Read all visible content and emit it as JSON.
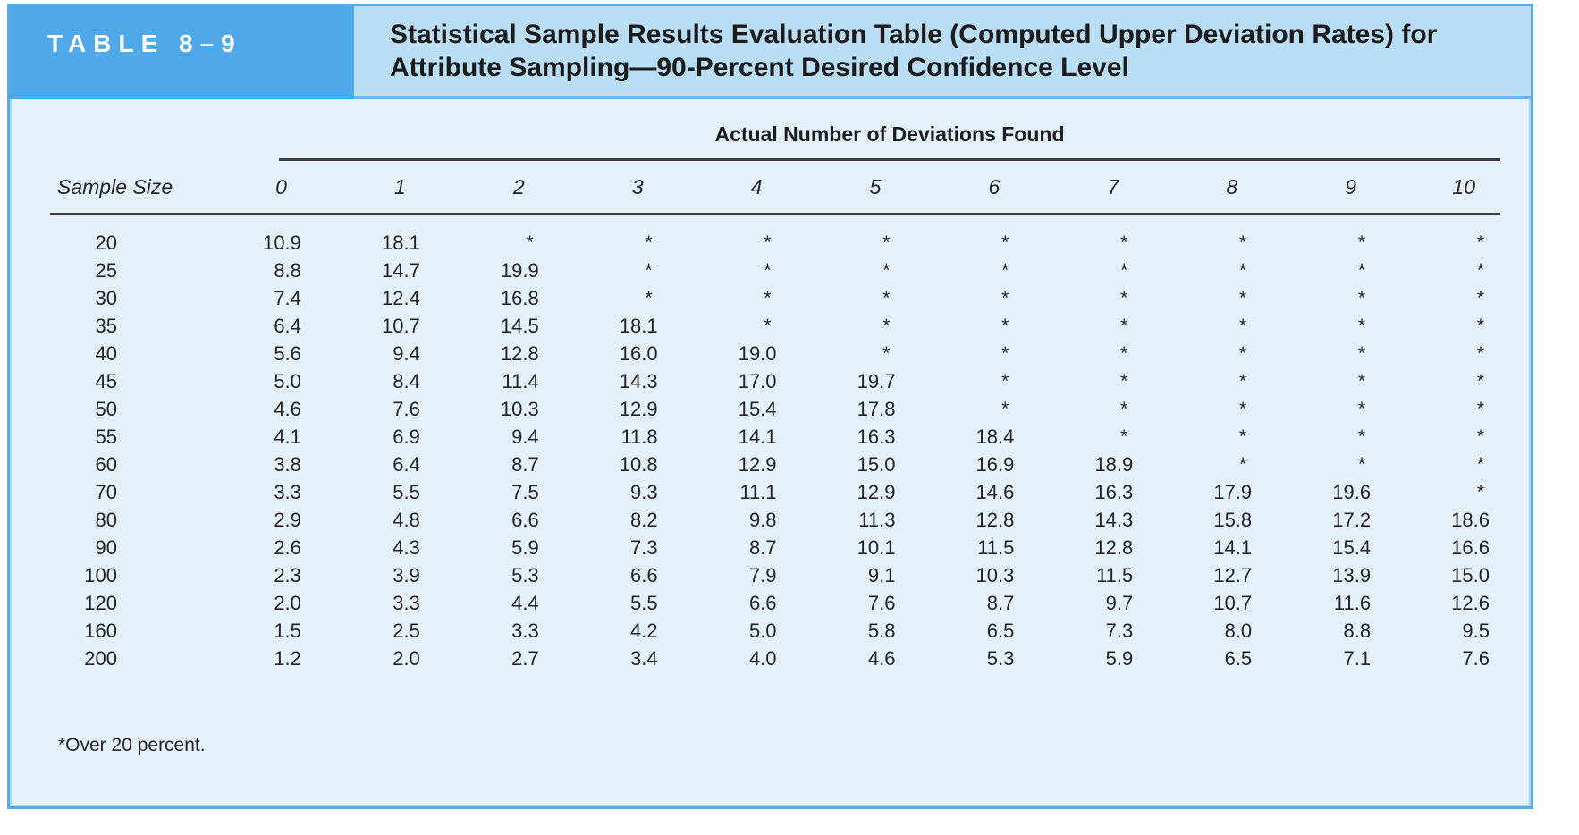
{
  "header": {
    "label": "TABLE 8–9",
    "title": "Statistical Sample Results Evaluation Table (Computed Upper Deviation Rates) for Attribute Sampling—90-Percent Desired Confidence Level"
  },
  "table": {
    "span_header": "Actual Number of Deviations Found",
    "row_header": "Sample Size",
    "columns": [
      "0",
      "1",
      "2",
      "3",
      "4",
      "5",
      "6",
      "7",
      "8",
      "9",
      "10"
    ],
    "rows": [
      {
        "sample_size": "20",
        "values": [
          "10.9",
          "18.1",
          "*",
          "*",
          "*",
          "*",
          "*",
          "*",
          "*",
          "*",
          "*"
        ]
      },
      {
        "sample_size": "25",
        "values": [
          "8.8",
          "14.7",
          "19.9",
          "*",
          "*",
          "*",
          "*",
          "*",
          "*",
          "*",
          "*"
        ]
      },
      {
        "sample_size": "30",
        "values": [
          "7.4",
          "12.4",
          "16.8",
          "*",
          "*",
          "*",
          "*",
          "*",
          "*",
          "*",
          "*"
        ]
      },
      {
        "sample_size": "35",
        "values": [
          "6.4",
          "10.7",
          "14.5",
          "18.1",
          "*",
          "*",
          "*",
          "*",
          "*",
          "*",
          "*"
        ]
      },
      {
        "sample_size": "40",
        "values": [
          "5.6",
          "9.4",
          "12.8",
          "16.0",
          "19.0",
          "*",
          "*",
          "*",
          "*",
          "*",
          "*"
        ]
      },
      {
        "sample_size": "45",
        "values": [
          "5.0",
          "8.4",
          "11.4",
          "14.3",
          "17.0",
          "19.7",
          "*",
          "*",
          "*",
          "*",
          "*"
        ]
      },
      {
        "sample_size": "50",
        "values": [
          "4.6",
          "7.6",
          "10.3",
          "12.9",
          "15.4",
          "17.8",
          "*",
          "*",
          "*",
          "*",
          "*"
        ]
      },
      {
        "sample_size": "55",
        "values": [
          "4.1",
          "6.9",
          "9.4",
          "11.8",
          "14.1",
          "16.3",
          "18.4",
          "*",
          "*",
          "*",
          "*"
        ]
      },
      {
        "sample_size": "60",
        "values": [
          "3.8",
          "6.4",
          "8.7",
          "10.8",
          "12.9",
          "15.0",
          "16.9",
          "18.9",
          "*",
          "*",
          "*"
        ]
      },
      {
        "sample_size": "70",
        "values": [
          "3.3",
          "5.5",
          "7.5",
          "9.3",
          "11.1",
          "12.9",
          "14.6",
          "16.3",
          "17.9",
          "19.6",
          "*"
        ]
      },
      {
        "sample_size": "80",
        "values": [
          "2.9",
          "4.8",
          "6.6",
          "8.2",
          "9.8",
          "11.3",
          "12.8",
          "14.3",
          "15.8",
          "17.2",
          "18.6"
        ]
      },
      {
        "sample_size": "90",
        "values": [
          "2.6",
          "4.3",
          "5.9",
          "7.3",
          "8.7",
          "10.1",
          "11.5",
          "12.8",
          "14.1",
          "15.4",
          "16.6"
        ]
      },
      {
        "sample_size": "100",
        "values": [
          "2.3",
          "3.9",
          "5.3",
          "6.6",
          "7.9",
          "9.1",
          "10.3",
          "11.5",
          "12.7",
          "13.9",
          "15.0"
        ]
      },
      {
        "sample_size": "120",
        "values": [
          "2.0",
          "3.3",
          "4.4",
          "5.5",
          "6.6",
          "7.6",
          "8.7",
          "9.7",
          "10.7",
          "11.6",
          "12.6"
        ]
      },
      {
        "sample_size": "160",
        "values": [
          "1.5",
          "2.5",
          "3.3",
          "4.2",
          "5.0",
          "5.8",
          "6.5",
          "7.3",
          "8.0",
          "8.8",
          "9.5"
        ]
      },
      {
        "sample_size": "200",
        "values": [
          "1.2",
          "2.0",
          "2.7",
          "3.4",
          "4.0",
          "4.6",
          "5.3",
          "5.9",
          "6.5",
          "7.1",
          "7.6"
        ]
      }
    ],
    "footnote": "*Over 20 percent."
  },
  "colors": {
    "label_box_bg": "#4fa9e8",
    "title_band_bg": "#b9def5",
    "body_bg": "#e4f1fb",
    "border": "#56ace5",
    "rule": "#3d3d3d",
    "text": "#242424"
  }
}
